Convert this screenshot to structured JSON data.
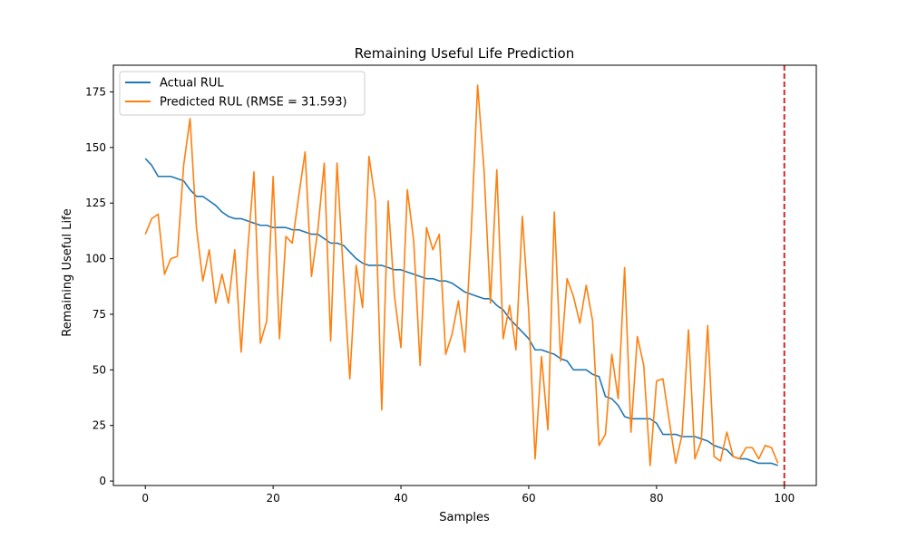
{
  "chart_data": {
    "type": "line",
    "title": "Remaining Useful Life Prediction",
    "xlabel": "Samples",
    "ylabel": "Remaining Useful Life",
    "xlim": [
      -5,
      105
    ],
    "ylim": [
      -2,
      187
    ],
    "xticks": [
      0,
      20,
      40,
      60,
      80,
      100
    ],
    "yticks": [
      0,
      25,
      50,
      75,
      100,
      125,
      150,
      175
    ],
    "grid": false,
    "legend_position": "upper left",
    "vline": {
      "x": 100,
      "color": "#d62728",
      "style": "dashed"
    },
    "series": [
      {
        "name": "Actual RUL",
        "color": "#1f77b4",
        "values": [
          145,
          142,
          137,
          137,
          137,
          136,
          135,
          131,
          128,
          128,
          126,
          124,
          121,
          119,
          118,
          118,
          117,
          116,
          115,
          115,
          114,
          114,
          114,
          113,
          113,
          112,
          111,
          111,
          109,
          107,
          107,
          106,
          103,
          100,
          98,
          97,
          97,
          97,
          96,
          95,
          95,
          94,
          93,
          92,
          91,
          91,
          90,
          90,
          89,
          87,
          85,
          84,
          83,
          82,
          82,
          79,
          77,
          73,
          70,
          67,
          64,
          59,
          59,
          58,
          57,
          55,
          54,
          50,
          50,
          50,
          48,
          47,
          38,
          37,
          34,
          29,
          28,
          28,
          28,
          28,
          26,
          21,
          21,
          21,
          20,
          20,
          20,
          19,
          18,
          16,
          15,
          14,
          11,
          10,
          10,
          9,
          8,
          8,
          8,
          7
        ]
      },
      {
        "name": "Predicted RUL (RMSE = 31.593)",
        "color": "#ff7f0e",
        "values": [
          111,
          118,
          120,
          93,
          100,
          101,
          142,
          163,
          114,
          90,
          104,
          80,
          93,
          80,
          104,
          58,
          103,
          139,
          62,
          72,
          137,
          64,
          110,
          107,
          128,
          148,
          92,
          113,
          143,
          63,
          143,
          93,
          46,
          97,
          78,
          146,
          126,
          32,
          126,
          83,
          60,
          131,
          108,
          52,
          114,
          104,
          111,
          57,
          66,
          81,
          58,
          112,
          178,
          140,
          80,
          140,
          64,
          79,
          59,
          119,
          76,
          10,
          56,
          23,
          121,
          54,
          91,
          83,
          71,
          88,
          72,
          16,
          21,
          57,
          37,
          96,
          22,
          65,
          52,
          7,
          45,
          46,
          27,
          8,
          21,
          68,
          10,
          18,
          70,
          11,
          9,
          22,
          11,
          10,
          15,
          15,
          10,
          16,
          15,
          8
        ]
      }
    ]
  }
}
